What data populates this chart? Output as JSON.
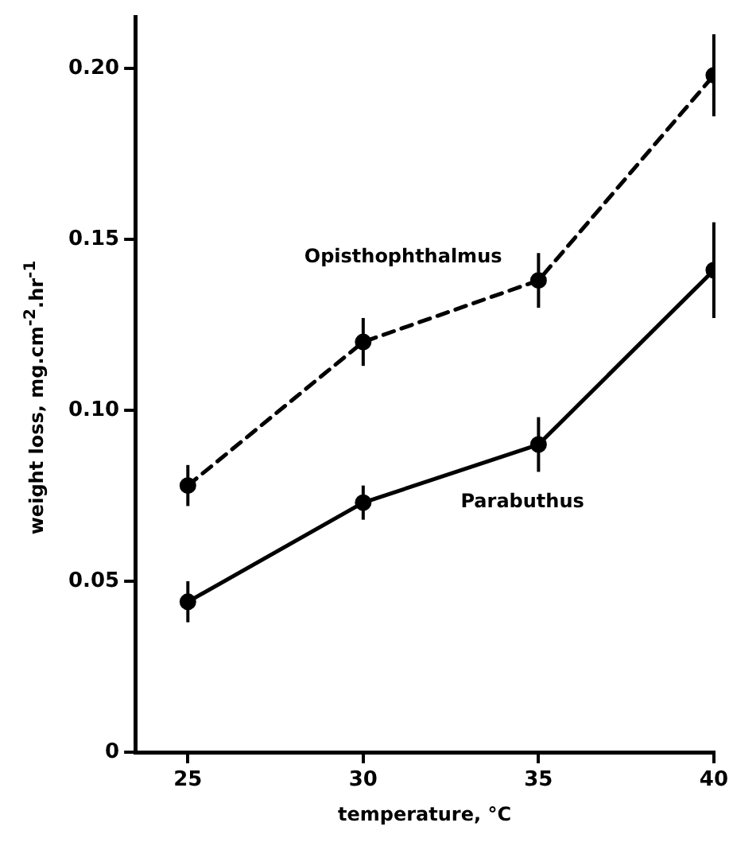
{
  "chart_data": {
    "type": "line",
    "xlabel": "temperature, °C",
    "ylabel": "weight loss, mg.cm$^{-2}$.hr$^{-1}$",
    "x": [
      25,
      30,
      35,
      40
    ],
    "xlim": [
      23.5,
      40
    ],
    "xticks": [
      25,
      30,
      35,
      40
    ],
    "ylim": [
      0,
      0.215
    ],
    "yticks": [
      0,
      {
        "value": 0.05,
        "label": "0.05"
      },
      {
        "value": 0.1,
        "label": "0.10"
      },
      {
        "value": 0.15,
        "label": "0.15"
      },
      {
        "value": 0.2,
        "label": "0.20"
      }
    ],
    "series": [
      {
        "name": "Opisthophthalmus",
        "color": "#000000",
        "values": [
          0.078,
          0.12,
          0.138,
          0.198
        ],
        "errors": [
          0.006,
          0.007,
          0.008,
          0.012
        ],
        "line_style": "dashed"
      },
      {
        "name": "Parabuthus",
        "color": "#000000",
        "values": [
          0.044,
          0.073,
          0.09,
          0.141
        ],
        "errors": [
          0.006,
          0.005,
          0.008,
          0.014
        ],
        "line_style": "solid"
      }
    ],
    "marker": "circle",
    "grid": false,
    "legend": false
  }
}
